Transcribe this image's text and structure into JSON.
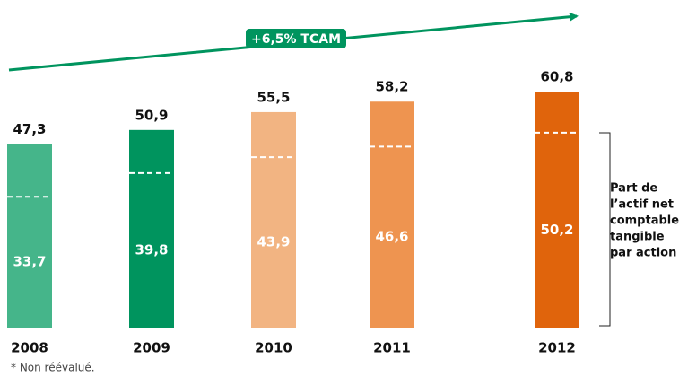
{
  "chart_data": {
    "type": "bar",
    "categories": [
      "2008",
      "2009",
      "2010",
      "2011",
      "2012"
    ],
    "values": [
      47.3,
      50.9,
      55.5,
      58.2,
      60.8
    ],
    "value_labels": [
      "47,3",
      "50,9",
      "55,5",
      "58,2",
      "60,8"
    ],
    "inner_values": [
      33.7,
      39.8,
      43.9,
      46.6,
      50.2
    ],
    "inner_value_labels": [
      "33,7",
      "39,8",
      "43,9",
      "46,6",
      "50,2"
    ],
    "colors": [
      "#45b58a",
      "#00945e",
      "#f2b482",
      "#ee9450",
      "#e0640c"
    ],
    "annotation": "+6,5% TCAM",
    "annotation_color": "#00945e",
    "bracket_label": [
      "Part de",
      "l’actif net",
      "comptable",
      "tangible",
      "par action"
    ],
    "footnote": "* Non réévalué."
  }
}
